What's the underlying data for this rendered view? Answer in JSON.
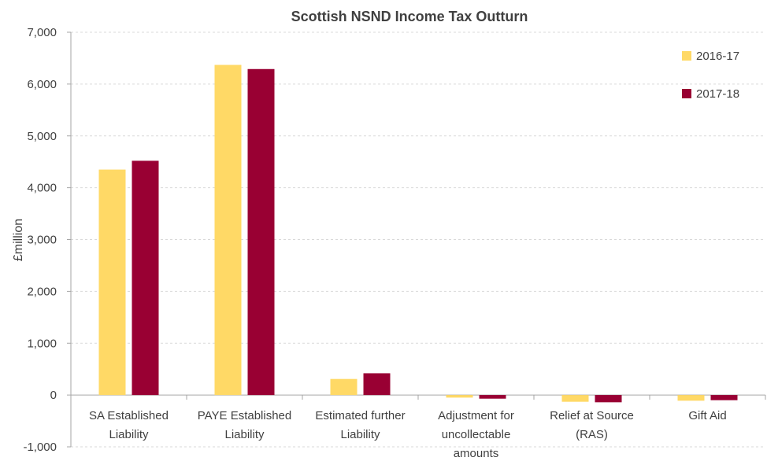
{
  "chart_data": {
    "type": "bar",
    "title": "Scottish NSND Income Tax Outturn",
    "xlabel": "",
    "ylabel": "£million",
    "ylim": [
      -1000,
      7000
    ],
    "yticks": [
      -1000,
      0,
      1000,
      2000,
      3000,
      4000,
      5000,
      6000,
      7000
    ],
    "ytick_labels": [
      "-1,000",
      "0",
      "1,000",
      "2,000",
      "3,000",
      "4,000",
      "5,000",
      "6,000",
      "7,000"
    ],
    "grid": true,
    "legend_position": "top-right",
    "categories": [
      [
        "SA Established",
        "Liability"
      ],
      [
        "PAYE Established",
        "Liability"
      ],
      [
        "Estimated further",
        "Liability"
      ],
      [
        "Adjustment for",
        "uncollectable",
        "amounts"
      ],
      [
        "Relief at Source",
        "(RAS)"
      ],
      [
        "Gift Aid"
      ]
    ],
    "series": [
      {
        "name": "2016-17",
        "color": "#FFD966",
        "values": [
          4350,
          6370,
          310,
          -50,
          -130,
          -110
        ]
      },
      {
        "name": "2017-18",
        "color": "#990033",
        "values": [
          4520,
          6290,
          420,
          -70,
          -140,
          -100
        ]
      }
    ]
  }
}
